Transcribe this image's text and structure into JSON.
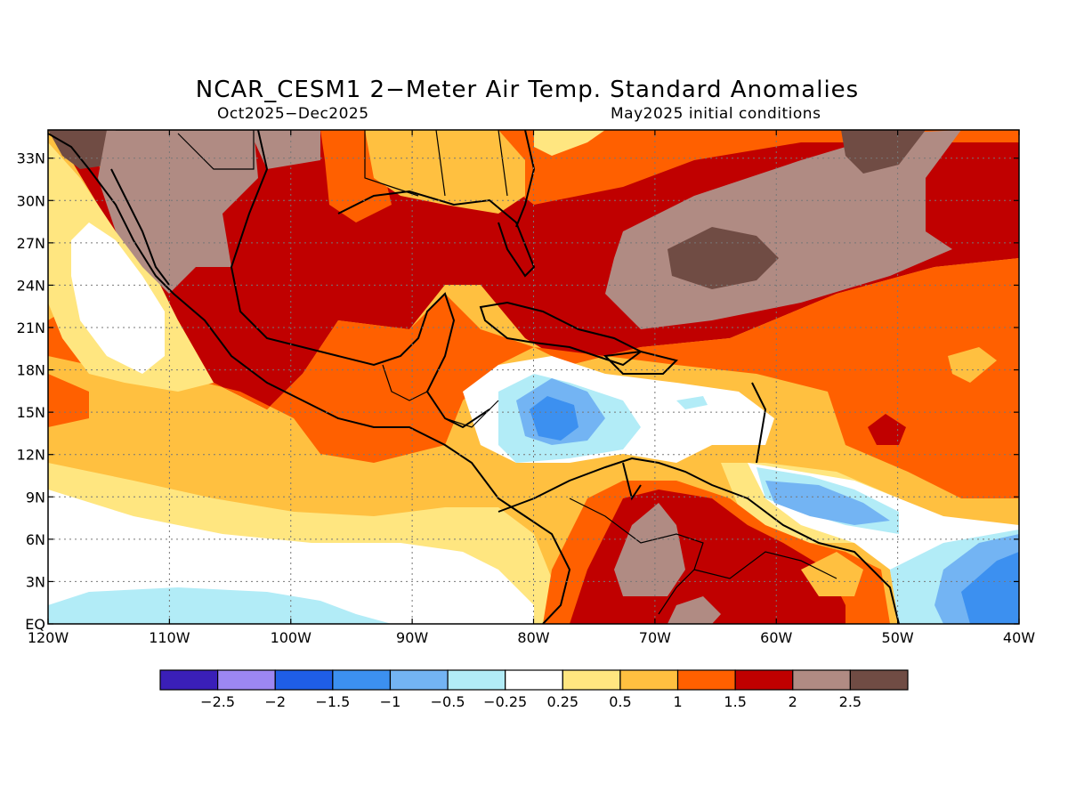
{
  "title": "NCAR_CESM1 2−Meter Air Temp. Standard Anomalies",
  "period": "Oct2025−Dec2025",
  "initial_conditions": "May2025 initial conditions",
  "map": {
    "projection": "cylindrical equidistant",
    "lon_range": [
      -120,
      -40
    ],
    "lat_range": [
      0,
      35
    ],
    "lon_tick_labels": [
      "120W",
      "110W",
      "100W",
      "90W",
      "80W",
      "70W",
      "60W",
      "50W",
      "40W"
    ],
    "lat_tick_labels": [
      "EQ",
      "3N",
      "6N",
      "9N",
      "12N",
      "15N",
      "18N",
      "21N",
      "24N",
      "27N",
      "30N",
      "33N"
    ],
    "grid": "dotted",
    "coastlines": true,
    "country_borders": true
  },
  "colorbar": {
    "labels": [
      "−2.5",
      "−2",
      "−1.5",
      "−1",
      "−0.5",
      "−0.25",
      "0.25",
      "0.5",
      "1",
      "1.5",
      "2",
      "2.5"
    ],
    "colors": [
      "#3a1fb8",
      "#9c87f2",
      "#1f5ee6",
      "#3c90f0",
      "#73b4f3",
      "#b2ecf7",
      "#ffffff",
      "#ffe680",
      "#ffc040",
      "#ff6000",
      "#c00000",
      "#b08b83",
      "#704c44"
    ]
  }
}
